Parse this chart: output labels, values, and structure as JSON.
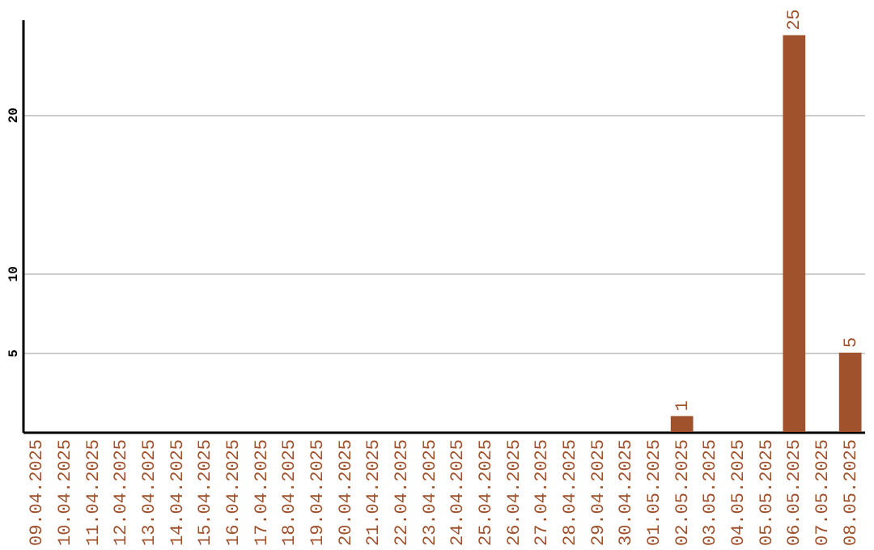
{
  "chart_data": {
    "type": "bar",
    "categories": [
      "09.04.2025",
      "10.04.2025",
      "11.04.2025",
      "12.04.2025",
      "13.04.2025",
      "14.04.2025",
      "15.04.2025",
      "16.04.2025",
      "17.04.2025",
      "18.04.2025",
      "19.04.2025",
      "20.04.2025",
      "21.04.2025",
      "22.04.2025",
      "23.04.2025",
      "24.04.2025",
      "25.04.2025",
      "26.04.2025",
      "27.04.2025",
      "28.04.2025",
      "29.04.2025",
      "30.04.2025",
      "01.05.2025",
      "02.05.2025",
      "03.05.2025",
      "04.05.2025",
      "05.05.2025",
      "06.05.2025",
      "07.05.2025",
      "08.05.2025"
    ],
    "values": [
      0,
      0,
      0,
      0,
      0,
      0,
      0,
      0,
      0,
      0,
      0,
      0,
      0,
      0,
      0,
      0,
      0,
      0,
      0,
      0,
      0,
      0,
      0,
      1,
      0,
      0,
      0,
      25,
      0,
      5
    ],
    "value_labels": [
      null,
      null,
      null,
      null,
      null,
      null,
      null,
      null,
      null,
      null,
      null,
      null,
      null,
      null,
      null,
      null,
      null,
      null,
      null,
      null,
      null,
      null,
      null,
      "1",
      null,
      null,
      null,
      "25",
      null,
      "5"
    ],
    "color": "#a0522d",
    "ylim": [
      0,
      26
    ],
    "yticks": [
      5,
      10,
      20
    ],
    "grid": "y"
  }
}
